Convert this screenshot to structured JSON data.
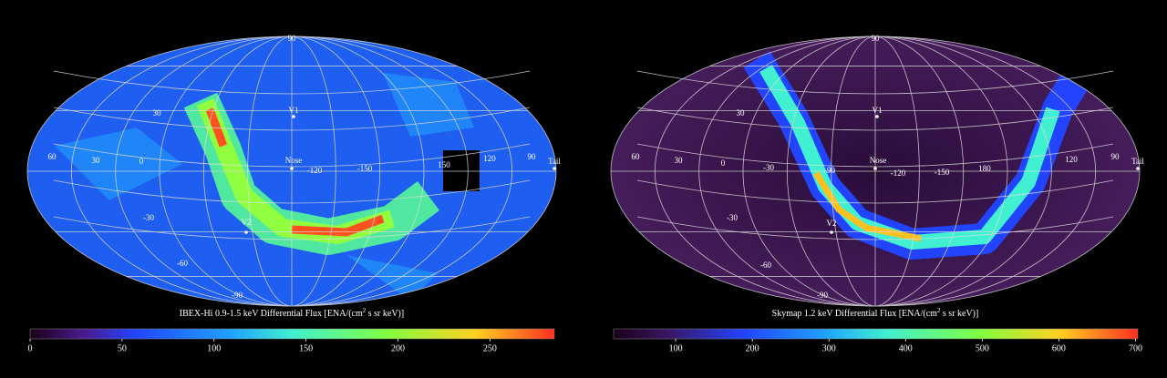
{
  "panels": [
    {
      "caption_prefix": "IBEX-Hi 0.9-1.5 keV Differential Flux [ENA/(cm",
      "caption_sup": "2",
      "caption_suffix": " s sr keV)]",
      "map_labels": [
        "90",
        "30",
        "60",
        "30",
        "0",
        "Nose",
        "-120",
        "-150",
        "150",
        "120",
        "90",
        "Tail",
        "V1",
        "V2",
        "-30",
        "-60",
        "-90"
      ],
      "colorbar": {
        "range": [
          0,
          285
        ],
        "ticks": [
          0,
          50,
          100,
          150,
          200,
          250
        ]
      }
    },
    {
      "caption_prefix": "Skymap 1.2 keV Differential Flux [ENA/(cm",
      "caption_sup": "2",
      "caption_suffix": " s sr keV)]",
      "map_labels": [
        "90",
        "30",
        "60",
        "30",
        "0",
        "-30",
        "-90",
        "Nose",
        "-120",
        "-150",
        "180",
        "120",
        "90",
        "Tail",
        "V1",
        "V2",
        "-30",
        "-60",
        "-90"
      ],
      "colorbar": {
        "range": [
          19,
          703
        ],
        "ticks": [
          100,
          200,
          300,
          400,
          500,
          600,
          700
        ]
      }
    }
  ]
}
